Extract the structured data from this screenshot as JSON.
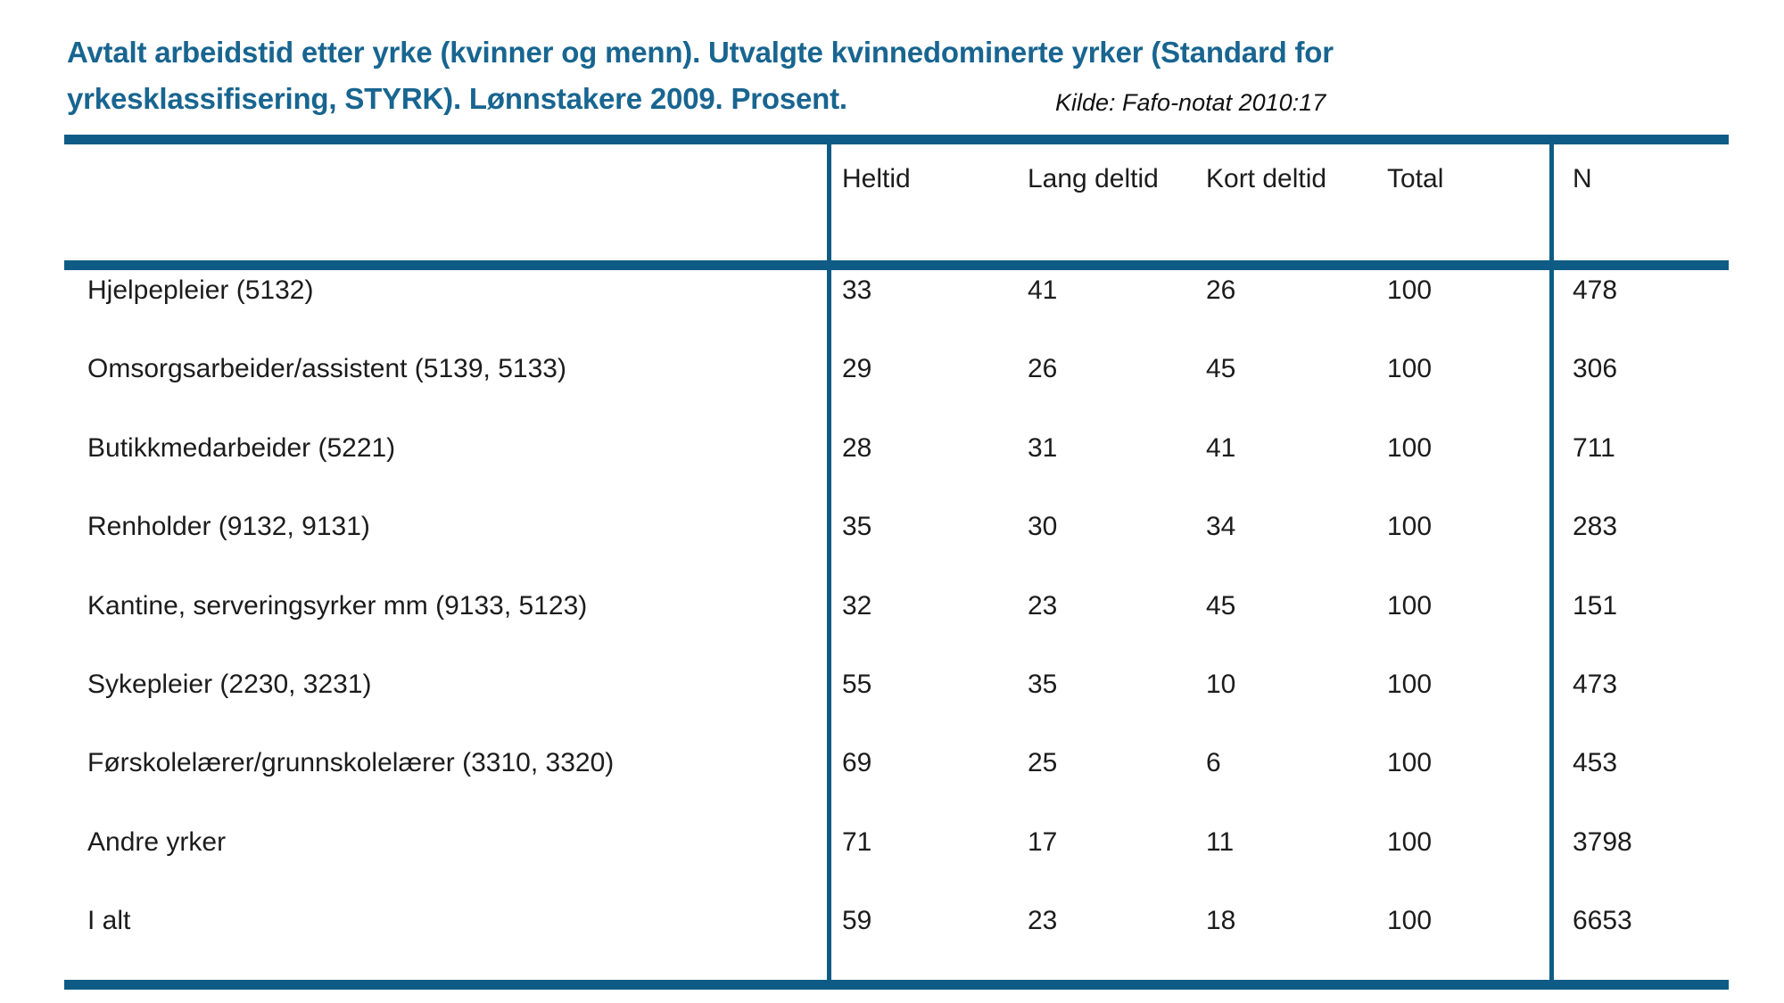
{
  "title": {
    "line1": "Avtalt arbeidstid etter yrke (kvinner og menn). Utvalgte kvinnedominerte yrker (Standard for",
    "line2": "yrkesklassifisering, STYRK). Lønnstakere 2009. Prosent."
  },
  "source": "Kilde: Fafo-notat 2010:17",
  "colors": {
    "accent_teal": "#0e5c85",
    "title_blue": "#186590",
    "text": "#1c1c1c"
  },
  "table": {
    "columns": [
      "Heltid",
      "Lang deltid",
      "Kort deltid",
      "Total",
      "N"
    ],
    "rows": [
      {
        "label": "Hjelpepleier (5132)",
        "values": [
          33,
          41,
          26,
          100,
          478
        ]
      },
      {
        "label": "Omsorgsarbeider/assistent (5139, 5133)",
        "values": [
          29,
          26,
          45,
          100,
          306
        ]
      },
      {
        "label": "Butikkmedarbeider (5221)",
        "values": [
          28,
          31,
          41,
          100,
          711
        ]
      },
      {
        "label": "Renholder (9132, 9131)",
        "values": [
          35,
          30,
          34,
          100,
          283
        ]
      },
      {
        "label": "Kantine, serveringsyrker mm (9133, 5123)",
        "values": [
          32,
          23,
          45,
          100,
          151
        ]
      },
      {
        "label": "Sykepleier (2230, 3231)",
        "values": [
          55,
          35,
          10,
          100,
          473
        ]
      },
      {
        "label": "Førskolelærer/grunnskolelærer (3310, 3320)",
        "values": [
          69,
          25,
          6,
          100,
          453
        ]
      },
      {
        "label": "Andre yrker",
        "values": [
          71,
          17,
          11,
          100,
          3798
        ]
      },
      {
        "label": "I alt",
        "values": [
          59,
          23,
          18,
          100,
          6653
        ]
      }
    ]
  }
}
